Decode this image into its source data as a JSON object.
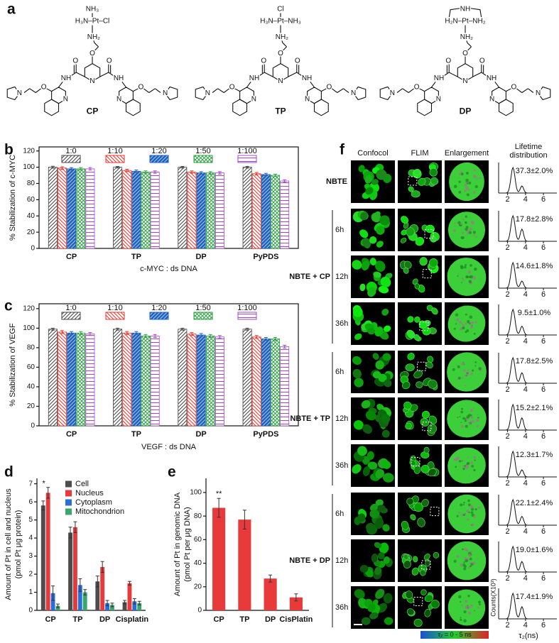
{
  "panel_labels": [
    "a",
    "b",
    "c",
    "d",
    "e",
    "f"
  ],
  "molecules": [
    {
      "name": "CP",
      "pt_top": "NH₃",
      "pt_line": "H₃N–Pt–Cl",
      "atoms": [
        "NH₂",
        "O",
        "N",
        "O",
        "O",
        "NH",
        "NH",
        "N",
        "N",
        "O",
        "O",
        "N",
        "N"
      ]
    },
    {
      "name": "TP",
      "pt_top": "Cl",
      "pt_line": "H₃N–Pt–NH₃",
      "atoms": [
        "NH₂",
        "O",
        "N",
        "O",
        "O",
        "NH",
        "NH",
        "N",
        "N",
        "O",
        "O",
        "N",
        "N"
      ]
    },
    {
      "name": "DP",
      "pt_top": "NH",
      "pt_line": "H₂N–Pt–NH₂",
      "atoms": [
        "NH₂",
        "O",
        "N",
        "O",
        "O",
        "NH",
        "NH",
        "N",
        "N",
        "O",
        "O",
        "N",
        "N"
      ]
    }
  ],
  "chart_data": [
    {
      "type": "bar",
      "ylabel": "% Stabilization of c-MYC",
      "xlabel": "c-MYC : ds DNA",
      "categories": [
        "CP",
        "TP",
        "DP",
        "PyPDS"
      ],
      "series": [
        {
          "name": "1:0",
          "color": "#444444",
          "pattern": "diag-right",
          "values": [
            100,
            100,
            100,
            100
          ],
          "errors": [
            1.2,
            1.0,
            1.0,
            1.0
          ]
        },
        {
          "name": "1:10",
          "color": "#e8332a",
          "pattern": "diag-left",
          "values": [
            99,
            96,
            94,
            92
          ],
          "errors": [
            1.5,
            1.5,
            1.5,
            1.5
          ]
        },
        {
          "name": "1:20",
          "color": "#1f5fbf",
          "pattern": "diag-dense",
          "values": [
            98,
            95,
            93,
            91
          ],
          "errors": [
            1.5,
            1.5,
            1.5,
            1.5
          ]
        },
        {
          "name": "1:50",
          "color": "#2ea043",
          "pattern": "cross",
          "values": [
            98,
            94,
            93,
            90
          ],
          "errors": [
            1.5,
            1.5,
            1.5,
            1.5
          ]
        },
        {
          "name": "1:100",
          "color": "#a347c8",
          "pattern": "horizontal",
          "values": [
            98,
            94,
            93,
            83
          ],
          "errors": [
            1.5,
            1.5,
            1.5,
            1.5
          ]
        }
      ],
      "ylim": [
        0,
        125
      ],
      "yticks": [
        0,
        20,
        40,
        60,
        80,
        100,
        120
      ],
      "legend": "top"
    },
    {
      "type": "bar",
      "ylabel": "% Stabilization of VEGF",
      "xlabel": "VEGF : ds DNA",
      "categories": [
        "CP",
        "TP",
        "DP",
        "PyPDS"
      ],
      "series": [
        {
          "name": "1:0",
          "color": "#444444",
          "pattern": "diag-right",
          "values": [
            99,
            99,
            99,
            99
          ],
          "errors": [
            1.0,
            1.0,
            1.0,
            1.0
          ]
        },
        {
          "name": "1:10",
          "color": "#e8332a",
          "pattern": "diag-left",
          "values": [
            96,
            95,
            94,
            91
          ],
          "errors": [
            1.5,
            1.5,
            1.5,
            1.5
          ]
        },
        {
          "name": "1:20",
          "color": "#1f5fbf",
          "pattern": "diag-dense",
          "values": [
            95,
            95,
            93,
            89
          ],
          "errors": [
            1.5,
            1.5,
            1.5,
            1.5
          ]
        },
        {
          "name": "1:50",
          "color": "#2ea043",
          "pattern": "cross",
          "values": [
            95,
            92,
            92,
            89
          ],
          "errors": [
            1.5,
            1.5,
            1.5,
            1.5
          ]
        },
        {
          "name": "1:100",
          "color": "#a347c8",
          "pattern": "horizontal",
          "values": [
            94,
            92,
            91,
            81
          ],
          "errors": [
            1.5,
            1.5,
            1.5,
            1.5
          ]
        }
      ],
      "ylim": [
        0,
        125
      ],
      "yticks": [
        0,
        20,
        40,
        60,
        80,
        100,
        120
      ],
      "legend": "top"
    },
    {
      "type": "bar",
      "ylabel": [
        "Amount of Pt in cell and nucleus",
        "(pmol Pt μg protein)"
      ],
      "categories": [
        "CP",
        "TP",
        "DP",
        "Cisplatin"
      ],
      "series": [
        {
          "name": "Cell",
          "color": "#4d4d4d",
          "values": [
            5.8,
            4.3,
            1.6,
            0.45
          ],
          "errors": [
            0.25,
            0.3,
            0.3,
            0.1
          ]
        },
        {
          "name": "Nucleus",
          "color": "#e83a3a",
          "values": [
            6.5,
            4.6,
            2.4,
            1.5
          ],
          "errors": [
            0.3,
            0.3,
            0.3,
            0.1
          ]
        },
        {
          "name": "Cytoplasm",
          "color": "#2a6fd6",
          "values": [
            0.95,
            1.4,
            0.4,
            0.5
          ],
          "errors": [
            0.4,
            0.35,
            0.15,
            0.15
          ]
        },
        {
          "name": "Mitochondrion",
          "color": "#3aa66a",
          "values": [
            0.25,
            1.0,
            0.3,
            0.4
          ],
          "errors": [
            0.1,
            0.15,
            0.1,
            0.1
          ]
        }
      ],
      "ylim": [
        0,
        7.3
      ],
      "yticks": [
        0,
        1,
        2,
        3,
        4,
        5,
        6,
        7
      ],
      "significance": "*",
      "legend": "top-left"
    },
    {
      "type": "bar",
      "ylabel": [
        "Amount of Pt in genomic DNA",
        "(pmol Pt per μg DNA)"
      ],
      "categories": [
        "CP",
        "TP",
        "DP",
        "CisPlatin"
      ],
      "values": [
        87,
        77,
        27,
        11
      ],
      "errors": [
        8,
        8,
        3,
        3
      ],
      "color": "#e83a3a",
      "ylim": [
        0,
        112
      ],
      "yticks": [
        0,
        20,
        40,
        60,
        80,
        100
      ],
      "significance": "**"
    }
  ],
  "panel_f": {
    "columns": [
      "Confocol",
      "FLIM",
      "Enlargement"
    ],
    "lifetime_header": [
      "Lifetime",
      "distribution"
    ],
    "groups": [
      {
        "label": "NBTE",
        "rows": [
          {
            "lifetime": "37.3±2.0%"
          }
        ]
      },
      {
        "label": "NBTE + CP",
        "rows": [
          {
            "time": "6h",
            "lifetime": "17.8±2.8%"
          },
          {
            "time": "12h",
            "lifetime": "14.6±1.8%"
          },
          {
            "time": "36h",
            "lifetime": "9.5±1.0%"
          }
        ]
      },
      {
        "label": "NBTE + TP",
        "rows": [
          {
            "time": "6h",
            "lifetime": "17.8±2.5%"
          },
          {
            "time": "12h",
            "lifetime": "15.2±2.1%"
          },
          {
            "time": "36h",
            "lifetime": "12.3±1.7%"
          }
        ]
      },
      {
        "label": "NBTE + DP",
        "rows": [
          {
            "time": "6h",
            "lifetime": "22.1±2.4%"
          },
          {
            "time": "12h",
            "lifetime": "19.0±1.6%"
          },
          {
            "time": "36h",
            "lifetime": "17.4±1.9%"
          }
        ]
      }
    ],
    "lifetime_axis": {
      "xlim": [
        1,
        7.5
      ],
      "xticks": [
        2,
        4,
        6
      ],
      "xlabel": "τ₂(ns)",
      "ylabel": "Counts(X10³)"
    },
    "colorbar_label": "τ₂ = 0 - 5 ns"
  }
}
